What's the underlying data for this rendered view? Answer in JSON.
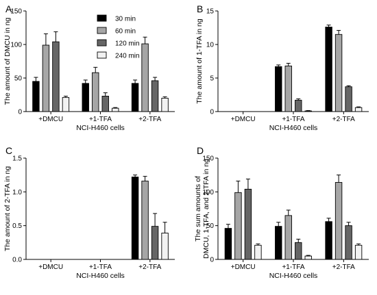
{
  "legend": {
    "entries": [
      "30 min",
      "60 min",
      "120 min",
      "240 min"
    ],
    "colors": [
      "#000000",
      "#a6a6a6",
      "#666666",
      "#f2f2f2"
    ]
  },
  "chart_data": [
    {
      "panel": "A",
      "type": "bar",
      "ylabel": "The amount of DMCU in ng",
      "xlabel": "NCI-H460 cells",
      "categories": [
        "+DMCU",
        "+1-TFA",
        "+2-TFA"
      ],
      "ylim": [
        0,
        150
      ],
      "yticks": [
        0,
        50,
        100,
        150
      ],
      "series": [
        {
          "name": "30 min",
          "values": [
            45,
            42,
            42
          ],
          "errors": [
            6,
            5,
            5
          ]
        },
        {
          "name": "60 min",
          "values": [
            99,
            58,
            101
          ],
          "errors": [
            17,
            8,
            10
          ]
        },
        {
          "name": "120 min",
          "values": [
            104,
            23,
            46
          ],
          "errors": [
            15,
            5,
            5
          ]
        },
        {
          "name": "240 min",
          "values": [
            21,
            5,
            20
          ],
          "errors": [
            2,
            1,
            2
          ]
        }
      ]
    },
    {
      "panel": "B",
      "type": "bar",
      "ylabel": "The amount of 1-TFA in ng",
      "xlabel": "NCI-H460 cells",
      "categories": [
        "+DMCU",
        "+1-TFA",
        "+2-TFA"
      ],
      "ylim": [
        0,
        15
      ],
      "yticks": [
        0,
        5,
        10,
        15
      ],
      "series": [
        {
          "name": "30 min",
          "values": [
            0,
            6.7,
            12.6
          ],
          "errors": [
            0,
            0.25,
            0.3
          ]
        },
        {
          "name": "60 min",
          "values": [
            0,
            6.8,
            11.5
          ],
          "errors": [
            0,
            0.4,
            0.6
          ]
        },
        {
          "name": "120 min",
          "values": [
            0,
            1.7,
            3.7
          ],
          "errors": [
            0,
            0.2,
            0.15
          ]
        },
        {
          "name": "240 min",
          "values": [
            0,
            0.1,
            0.6
          ],
          "errors": [
            0,
            0.05,
            0.1
          ]
        }
      ]
    },
    {
      "panel": "C",
      "type": "bar",
      "ylabel": "The amount of 2-TFA in ng",
      "xlabel": "NCI-H460 cells",
      "categories": [
        "+DMCU",
        "+1-TFA",
        "+2-TFA"
      ],
      "ylim": [
        0,
        1.5
      ],
      "yticks": [
        0.0,
        0.5,
        1.0,
        1.5
      ],
      "ytick_decimals": 1,
      "series": [
        {
          "name": "30 min",
          "values": [
            0,
            0,
            1.22
          ],
          "errors": [
            0,
            0,
            0.03
          ]
        },
        {
          "name": "60 min",
          "values": [
            0,
            0,
            1.16
          ],
          "errors": [
            0,
            0,
            0.07
          ]
        },
        {
          "name": "120 min",
          "values": [
            0,
            0,
            0.49
          ],
          "errors": [
            0,
            0,
            0.19
          ]
        },
        {
          "name": "240 min",
          "values": [
            0,
            0,
            0.39
          ],
          "errors": [
            0,
            0,
            0.16
          ]
        }
      ]
    },
    {
      "panel": "D",
      "type": "bar",
      "ylabel": "The sum amounts of DMCU, 1-TFA, and 2-TFA in ng",
      "ylabel_lines": [
        "The sum amounts of",
        "DMCU, 1-TFA, and 2-TFA in ng"
      ],
      "xlabel": "NCI-H460 cells",
      "categories": [
        "+DMCU",
        "+1-TFA",
        "+2-TFA"
      ],
      "ylim": [
        0,
        150
      ],
      "yticks": [
        0,
        50,
        100,
        150
      ],
      "series": [
        {
          "name": "30 min",
          "values": [
            46,
            49,
            56
          ],
          "errors": [
            6,
            6,
            5
          ]
        },
        {
          "name": "60 min",
          "values": [
            99,
            65,
            114
          ],
          "errors": [
            17,
            8,
            11
          ]
        },
        {
          "name": "120 min",
          "values": [
            104,
            25,
            50
          ],
          "errors": [
            15,
            5,
            5
          ]
        },
        {
          "name": "240 min",
          "values": [
            21,
            5,
            21
          ],
          "errors": [
            2,
            1,
            2
          ]
        }
      ]
    }
  ]
}
